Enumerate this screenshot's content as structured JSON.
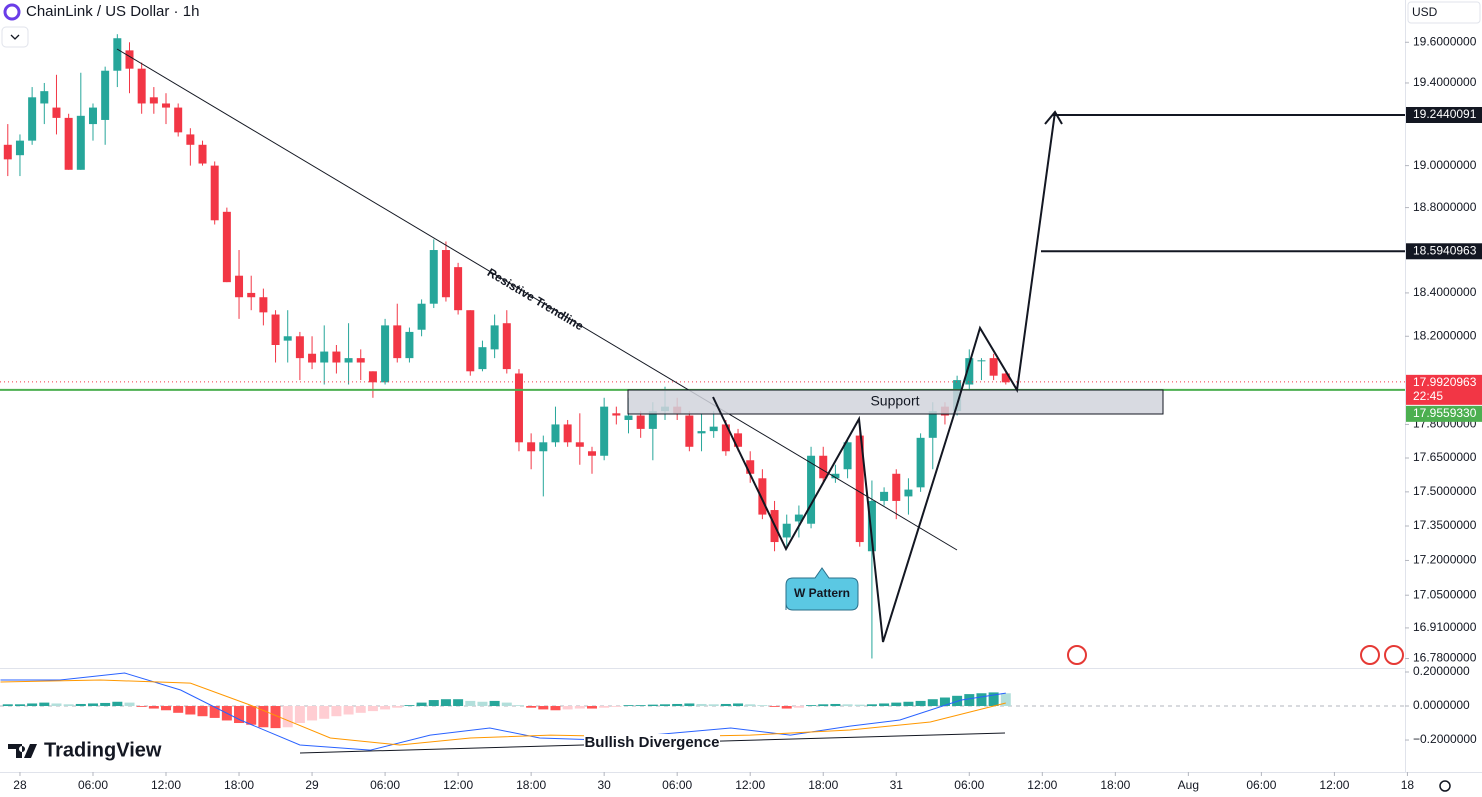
{
  "header": {
    "symbol": "ChainLink / US Dollar · 1h",
    "currency": "USD",
    "brand": "TradingView"
  },
  "chart_data": [
    {
      "type": "candlestick",
      "log_scale": true,
      "up_color": "#26a69a",
      "down_color": "#f23645",
      "x": [
        -1,
        0,
        1,
        2,
        3,
        4,
        5,
        6,
        7,
        8,
        9,
        10,
        11,
        12,
        13,
        14,
        15,
        16,
        17,
        18,
        19,
        20,
        21,
        22,
        23,
        24,
        25,
        26,
        27,
        28,
        29,
        30,
        31,
        32,
        33,
        34,
        35,
        36,
        37,
        38,
        39,
        40,
        41,
        42,
        43,
        44,
        45,
        46,
        47,
        48,
        49,
        50,
        51,
        52,
        53,
        54,
        55,
        56,
        57,
        58,
        59,
        60,
        61,
        62,
        63,
        64,
        65,
        66,
        67,
        68,
        69,
        70,
        71,
        72,
        73,
        74,
        75,
        76,
        77,
        78,
        79,
        80,
        81
      ],
      "open": [
        19.1,
        19.05,
        19.12,
        19.3,
        19.28,
        19.23,
        18.98,
        19.2,
        19.22,
        19.46,
        19.56,
        19.47,
        19.33,
        19.3,
        19.28,
        19.15,
        19.1,
        19.0,
        18.78,
        18.48,
        18.4,
        18.38,
        18.3,
        18.18,
        18.2,
        18.12,
        18.08,
        18.13,
        18.08,
        18.1,
        18.04,
        17.99,
        18.25,
        18.1,
        18.23,
        18.35,
        18.6,
        18.52,
        18.32,
        18.05,
        18.14,
        18.26,
        18.03,
        17.72,
        17.68,
        17.72,
        17.8,
        17.72,
        17.68,
        17.66,
        17.85,
        17.82,
        17.84,
        17.78,
        17.86,
        17.88,
        17.84,
        17.76,
        17.77,
        17.8,
        17.76,
        17.64,
        17.56,
        17.42,
        17.3,
        17.37,
        17.36,
        17.66,
        17.56,
        17.6,
        17.75,
        17.24,
        17.46,
        17.58,
        17.48,
        17.52,
        17.74,
        17.88,
        17.86,
        17.98,
        18.09,
        18.1,
        18.03
      ],
      "high": [
        19.2,
        19.15,
        19.38,
        19.4,
        19.44,
        19.25,
        19.45,
        19.3,
        19.48,
        19.64,
        19.6,
        19.5,
        19.38,
        19.35,
        19.3,
        19.18,
        19.12,
        19.02,
        18.8,
        18.6,
        18.48,
        18.42,
        18.32,
        18.32,
        18.22,
        18.2,
        18.25,
        18.16,
        18.26,
        18.14,
        18.04,
        18.28,
        18.35,
        18.24,
        18.37,
        18.65,
        18.64,
        18.54,
        18.32,
        18.18,
        18.3,
        18.32,
        18.05,
        17.76,
        17.75,
        17.88,
        17.82,
        17.85,
        17.7,
        17.92,
        17.88,
        17.92,
        17.86,
        17.9,
        17.97,
        17.92,
        17.86,
        17.85,
        17.86,
        17.82,
        17.78,
        17.68,
        17.6,
        17.46,
        17.4,
        17.44,
        17.7,
        17.7,
        17.62,
        17.74,
        17.8,
        17.55,
        17.52,
        17.6,
        17.56,
        17.76,
        17.9,
        17.9,
        18.02,
        18.14,
        18.1,
        18.12,
        18.04
      ],
      "low": [
        18.95,
        18.95,
        19.1,
        19.2,
        19.15,
        18.98,
        18.98,
        19.12,
        19.1,
        19.38,
        19.35,
        19.25,
        19.25,
        19.2,
        19.14,
        19.0,
        19.0,
        18.72,
        18.45,
        18.28,
        18.32,
        18.25,
        18.08,
        18.08,
        18.0,
        18.05,
        17.98,
        18.03,
        17.98,
        18.0,
        17.92,
        17.98,
        18.08,
        18.08,
        18.2,
        18.33,
        18.36,
        18.3,
        18.02,
        18.04,
        18.1,
        18.03,
        17.68,
        17.6,
        17.48,
        17.7,
        17.7,
        17.62,
        17.58,
        17.64,
        17.8,
        17.76,
        17.74,
        17.64,
        17.82,
        17.82,
        17.68,
        17.68,
        17.74,
        17.66,
        17.68,
        17.54,
        17.38,
        17.24,
        17.25,
        17.3,
        17.34,
        17.54,
        17.54,
        17.56,
        17.26,
        16.78,
        17.44,
        17.38,
        17.4,
        17.5,
        17.6,
        17.8,
        17.84,
        17.95,
        18.0,
        18.0,
        17.98
      ],
      "close": [
        19.03,
        19.12,
        19.33,
        19.36,
        19.23,
        18.98,
        19.24,
        19.28,
        19.46,
        19.62,
        19.47,
        19.3,
        19.3,
        19.28,
        19.16,
        19.1,
        19.01,
        18.74,
        18.45,
        18.38,
        18.38,
        18.31,
        18.16,
        18.2,
        18.1,
        18.08,
        18.13,
        18.08,
        18.1,
        18.08,
        17.99,
        18.25,
        18.1,
        18.22,
        18.35,
        18.6,
        18.38,
        18.32,
        18.04,
        18.15,
        18.25,
        18.05,
        17.72,
        17.68,
        17.72,
        17.8,
        17.72,
        17.7,
        17.66,
        17.88,
        17.84,
        17.84,
        17.78,
        17.86,
        17.88,
        17.85,
        17.7,
        17.77,
        17.79,
        17.68,
        17.7,
        17.58,
        17.4,
        17.28,
        17.36,
        17.4,
        17.66,
        17.56,
        17.58,
        17.72,
        17.28,
        17.46,
        17.5,
        17.46,
        17.51,
        17.74,
        17.86,
        17.84,
        18.0,
        18.1,
        18.09,
        18.02,
        17.99
      ],
      "xlim": [
        -1.64,
        113.8
      ],
      "xticks": [
        {
          "value": 0,
          "label": "28"
        },
        {
          "value": 6,
          "label": "06:00"
        },
        {
          "value": 12,
          "label": "12:00"
        },
        {
          "value": 18,
          "label": "18:00"
        },
        {
          "value": 24,
          "label": "29"
        },
        {
          "value": 30,
          "label": "06:00"
        },
        {
          "value": 36,
          "label": "12:00"
        },
        {
          "value": 42,
          "label": "18:00"
        },
        {
          "value": 48,
          "label": "30"
        },
        {
          "value": 54,
          "label": "06:00"
        },
        {
          "value": 60,
          "label": "12:00"
        },
        {
          "value": 66,
          "label": "18:00"
        },
        {
          "value": 72,
          "label": "31"
        },
        {
          "value": 78,
          "label": "06:00"
        },
        {
          "value": 84,
          "label": "12:00"
        },
        {
          "value": 90,
          "label": "18:00"
        },
        {
          "value": 96,
          "label": "Aug"
        },
        {
          "value": 102,
          "label": "06:00"
        },
        {
          "value": 108,
          "label": "12:00"
        },
        {
          "value": 114,
          "label": "18"
        }
      ],
      "ylim": [
        16.74,
        19.81
      ],
      "yticks": [
        {
          "value": 19.6,
          "label": "19.6000000"
        },
        {
          "value": 19.4,
          "label": "19.4000000"
        },
        {
          "value": 19.0,
          "label": "19.0000000"
        },
        {
          "value": 18.8,
          "label": "18.8000000"
        },
        {
          "value": 18.4,
          "label": "18.4000000"
        },
        {
          "value": 18.2,
          "label": "18.2000000"
        },
        {
          "value": 17.8,
          "label": "17.8000000"
        },
        {
          "value": 17.65,
          "label": "17.6500000"
        },
        {
          "value": 17.5,
          "label": "17.5000000"
        },
        {
          "value": 17.35,
          "label": "17.3500000"
        },
        {
          "value": 17.2,
          "label": "17.2000000"
        },
        {
          "value": 17.05,
          "label": "17.0500000"
        },
        {
          "value": 16.91,
          "label": "16.9100000"
        },
        {
          "value": 16.78,
          "label": "16.7800000"
        }
      ],
      "drawn_levels": [
        19.2440091,
        18.5940963
      ],
      "last_price": 17.9920963,
      "countdown": "22:45",
      "support_level": {
        "value": 17.955933,
        "label": "17.9559330"
      },
      "annotations": {
        "trendline": "Resistive Trendline",
        "support": "Support",
        "pattern": "W Pattern"
      }
    },
    {
      "type": "macd",
      "histogram_colors": [
        "#26a69a",
        "#b2dfdb",
        "#ff5252",
        "#ffcdd2"
      ],
      "histogram": [
        0.01,
        0.01,
        0.015,
        0.02,
        0.015,
        0.01,
        0.012,
        0.015,
        0.018,
        0.025,
        0.02,
        -0.005,
        -0.015,
        -0.025,
        -0.04,
        -0.05,
        -0.06,
        -0.07,
        -0.085,
        -0.1,
        -0.11,
        -0.125,
        -0.13,
        -0.125,
        -0.1,
        -0.085,
        -0.075,
        -0.06,
        -0.05,
        -0.04,
        -0.03,
        -0.02,
        -0.01,
        0.005,
        0.02,
        0.035,
        0.04,
        0.04,
        0.03,
        0.025,
        0.03,
        0.02,
        0.005,
        -0.01,
        -0.02,
        -0.025,
        -0.02,
        -0.015,
        -0.015,
        -0.01,
        -0.005,
        0.005,
        0.005,
        0.008,
        0.01,
        0.012,
        0.015,
        0.012,
        0.01,
        0.012,
        0.015,
        0.01,
        0.005,
        -0.005,
        -0.015,
        -0.01,
        0.005,
        0.01,
        0.012,
        0.01,
        0.008,
        0.01,
        0.015,
        0.02,
        0.025,
        0.03,
        0.04,
        0.05,
        0.06,
        0.07,
        0.075,
        0.08,
        0.075
      ],
      "series": [
        {
          "color": "#2962ff",
          "x": [
            -1.6,
            3.3,
            8.6,
            13.2,
            18.1,
            23,
            28.8,
            33.7,
            38.6,
            42.7,
            47.7,
            51.8,
            58.4,
            63.3,
            68.2,
            72.3,
            77.3,
            81
          ],
          "values": [
            0.153,
            0.153,
            0.194,
            0.094,
            -0.082,
            -0.229,
            -0.259,
            -0.171,
            -0.129,
            -0.188,
            -0.2,
            -0.171,
            -0.129,
            -0.171,
            -0.118,
            -0.082,
            0.035,
            0.076
          ]
        },
        {
          "color": "#ff9800",
          "x": [
            -1.6,
            6.6,
            14,
            18.9,
            25.5,
            31.2,
            37,
            43.6,
            51.8,
            60,
            68.2,
            74.8,
            81
          ],
          "values": [
            0.141,
            0.153,
            0.135,
            0.006,
            -0.188,
            -0.229,
            -0.188,
            -0.171,
            -0.182,
            -0.171,
            -0.141,
            -0.094,
            0.018
          ]
        }
      ],
      "ylim": [
        -0.388,
        0.2235
      ],
      "yticks": [
        {
          "value": 0.2,
          "label": "0.2000000"
        },
        {
          "value": 0,
          "label": "0.0000000"
        },
        {
          "value": -0.2,
          "label": "−0.2000000"
        }
      ],
      "annotation": "Bullish Divergence"
    }
  ]
}
